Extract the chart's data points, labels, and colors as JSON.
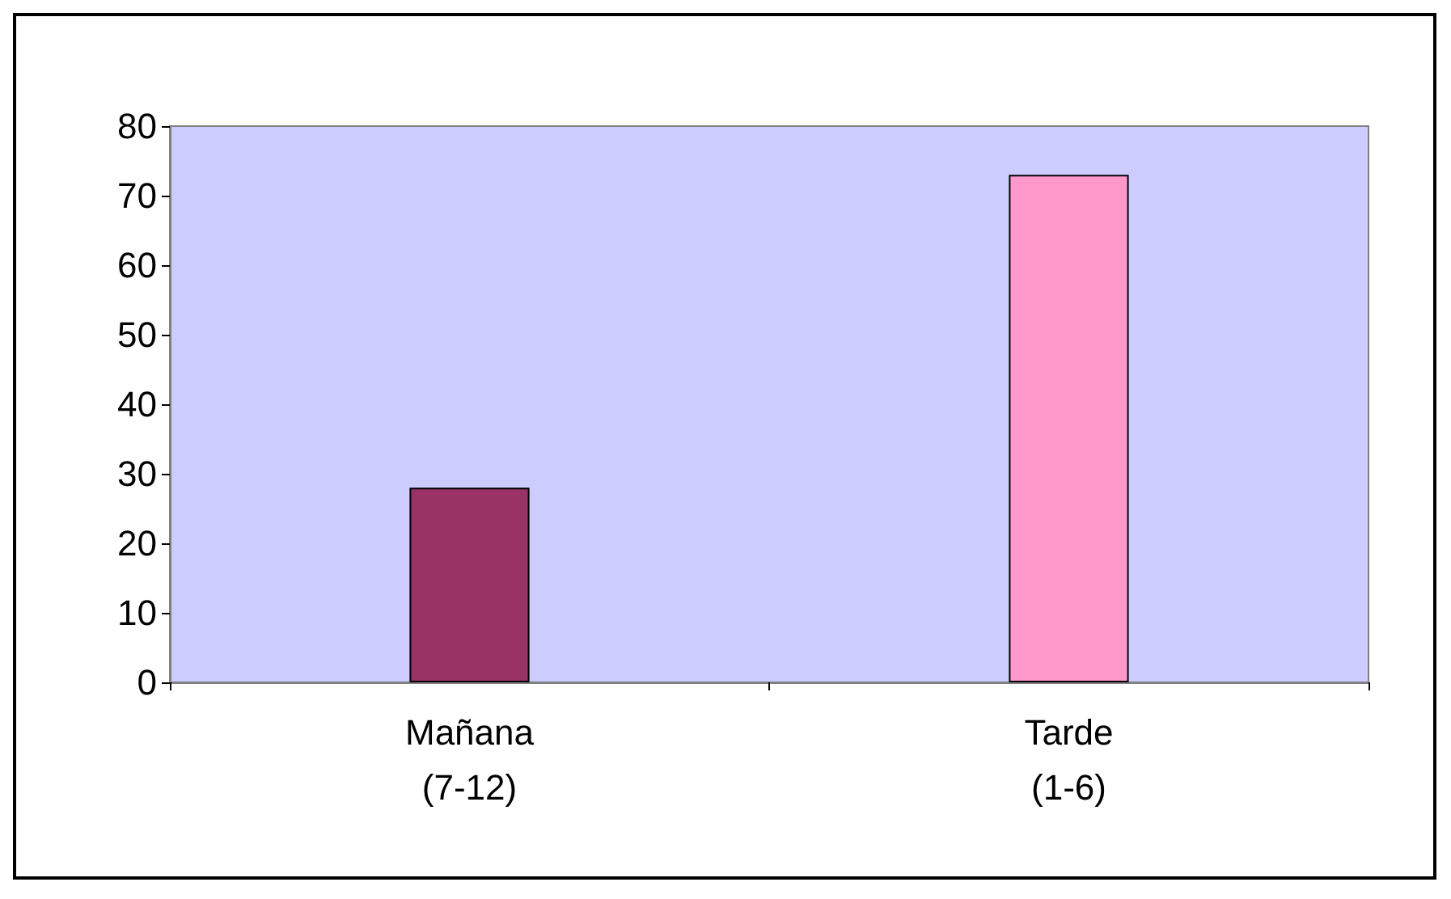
{
  "chart_data": {
    "type": "bar",
    "categories": [
      "Mañana\n(7-12)",
      "Tarde\n(1-6)"
    ],
    "values": [
      28,
      73
    ],
    "colors": [
      "#993366",
      "#ff99cc"
    ],
    "ylim": [
      0,
      80
    ],
    "yticks": [
      0,
      10,
      20,
      30,
      40,
      50,
      60,
      70,
      80
    ],
    "grid": false
  }
}
